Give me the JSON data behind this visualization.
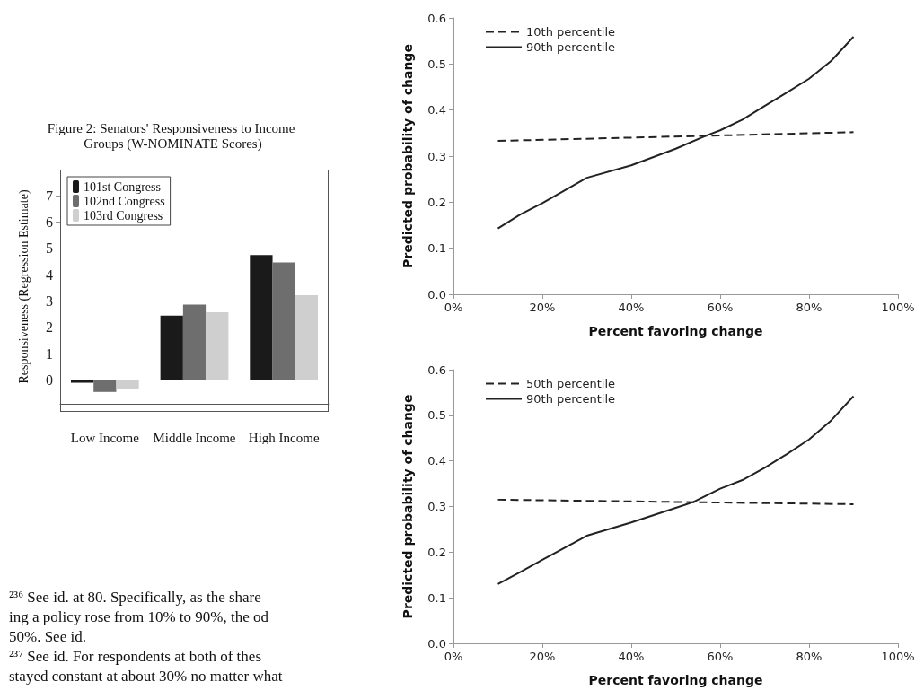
{
  "chart_data": [
    {
      "type": "bar",
      "title": "Figure 2: Senators' Responsiveness to Income Groups (W-NOMINATE Scores)",
      "ylabel": "Responsiveness (Regression Estimate)",
      "categories": [
        "Low Income",
        "Middle Income",
        "High Income"
      ],
      "series": [
        {
          "name": "101st Congress",
          "color": "#1a1a1a",
          "values": [
            -0.1,
            2.45,
            4.75
          ]
        },
        {
          "name": "102nd Congress",
          "color": "#6e6e6e",
          "values": [
            -0.45,
            2.87,
            4.47
          ]
        },
        {
          "name": "103rd Congress",
          "color": "#cfcfcf",
          "values": [
            -0.35,
            2.58,
            3.23
          ]
        }
      ],
      "ylim": [
        -0.9,
        8
      ],
      "yticks": [
        0,
        1,
        2,
        3,
        4,
        5,
        6,
        7
      ],
      "ref_lines": [
        {
          "axis": "y",
          "value": 0,
          "color": "#333333"
        }
      ],
      "grid": false,
      "legend": "top left"
    },
    {
      "type": "line",
      "xlabel": "Percent favoring change",
      "ylabel": "Predicted probability of change",
      "series": [
        {
          "name": "10th percentile",
          "color": "#222222",
          "line_style": "dashed",
          "x": [
            10,
            90
          ],
          "values": [
            0.333,
            0.352
          ]
        },
        {
          "name": "90th percentile",
          "color": "#222222",
          "line_style": "solid",
          "x": [
            10,
            15,
            20,
            30,
            40,
            50,
            57,
            60,
            65,
            70,
            75,
            80,
            85,
            90
          ],
          "values": [
            0.143,
            0.173,
            0.198,
            0.253,
            0.28,
            0.316,
            0.345,
            0.356,
            0.379,
            0.409,
            0.438,
            0.468,
            0.507,
            0.559
          ]
        }
      ],
      "xlim": [
        0,
        100
      ],
      "xticks": [
        {
          "value": 0,
          "label": "0%"
        },
        {
          "value": 20,
          "label": "20%"
        },
        {
          "value": 40,
          "label": "40%"
        },
        {
          "value": 60,
          "label": "60%"
        },
        {
          "value": 80,
          "label": "80%"
        },
        {
          "value": 100,
          "label": "100%"
        }
      ],
      "ylim": [
        0,
        0.6
      ],
      "yticks": [
        {
          "value": 0,
          "label": "0.0"
        },
        0.1,
        0.2,
        0.3,
        0.4,
        0.5,
        0.6
      ],
      "grid": false,
      "legend": "top left",
      "marker": "none"
    },
    {
      "type": "line",
      "xlabel": "Percent favoring change",
      "ylabel": "Predicted probability of change",
      "series": [
        {
          "name": "50th percentile",
          "color": "#222222",
          "line_style": "dashed",
          "x": [
            10,
            90
          ],
          "values": [
            0.315,
            0.305
          ]
        },
        {
          "name": "90th percentile",
          "color": "#222222",
          "line_style": "solid",
          "x": [
            10,
            15,
            20,
            30,
            40,
            50,
            54,
            60,
            65,
            70,
            75,
            80,
            85,
            90
          ],
          "values": [
            0.13,
            0.156,
            0.183,
            0.236,
            0.265,
            0.297,
            0.31,
            0.339,
            0.358,
            0.385,
            0.415,
            0.447,
            0.489,
            0.542
          ]
        }
      ],
      "xlim": [
        0,
        100
      ],
      "xticks": [
        {
          "value": 0,
          "label": "0%"
        },
        {
          "value": 20,
          "label": "20%"
        },
        {
          "value": 40,
          "label": "40%"
        },
        {
          "value": 60,
          "label": "60%"
        },
        {
          "value": 80,
          "label": "80%"
        },
        {
          "value": 100,
          "label": "100%"
        }
      ],
      "ylim": [
        0,
        0.6
      ],
      "yticks": [
        {
          "value": 0,
          "label": "0.0"
        },
        0.1,
        0.2,
        0.3,
        0.4,
        0.5,
        0.6
      ],
      "grid": false,
      "legend": "top left",
      "marker": "none"
    },
    {
      "type": "other",
      "annotations": [
        "²³⁶ See id. at 80. Specifically, as the share",
        "ing a policy rose from 10% to 90%, the od",
        "50%. See id.",
        "²³⁷ See id. For respondents at both of thes",
        "stayed constant at about 30% no matter what"
      ]
    }
  ]
}
